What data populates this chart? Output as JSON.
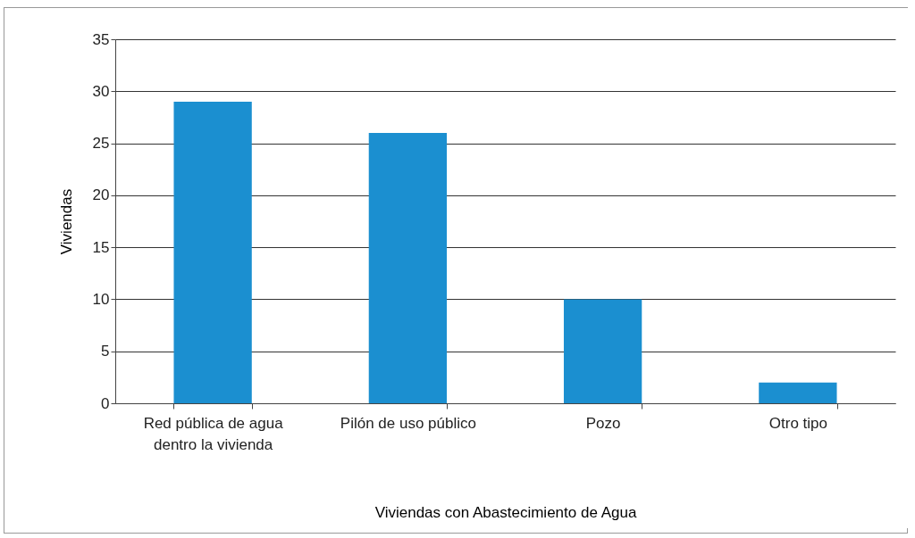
{
  "chart_data": {
    "type": "bar",
    "xlabel": "Viviendas con Abastecimiento de Agua",
    "ylabel": "Viviendas",
    "categories": [
      "Red pública de agua\ndentro la vivienda",
      "Pilón de uso público",
      "Pozo",
      "Otro tipo"
    ],
    "values": [
      29,
      26,
      10,
      2
    ],
    "color": "#1b8fd0",
    "ylim": [
      0,
      35
    ],
    "yticks": [
      0,
      5,
      10,
      15,
      20,
      25,
      30,
      35
    ],
    "grid": "y"
  }
}
